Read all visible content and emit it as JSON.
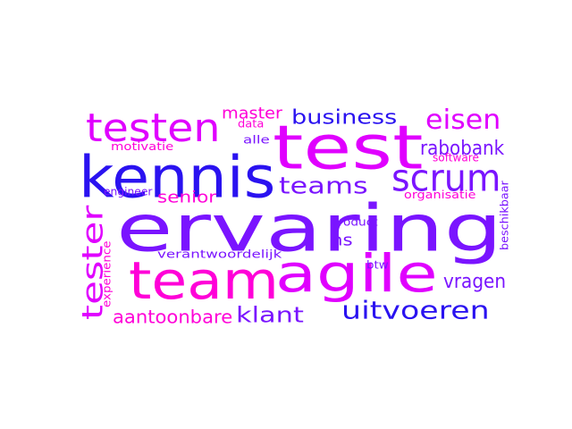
{
  "colors": {
    "blue": "#2a12f0",
    "violet": "#7a14ff",
    "pink": "#ff00d8",
    "magenta": "#e000ff",
    "background": "#ffffff"
  },
  "words": [
    {
      "id": "ervaring",
      "text": "ervaring",
      "color": "violet"
    },
    {
      "id": "test",
      "text": "test",
      "color": "magenta"
    },
    {
      "id": "kennis",
      "text": "kennis",
      "color": "blue"
    },
    {
      "id": "team",
      "text": "team",
      "color": "pink"
    },
    {
      "id": "agile",
      "text": "agile",
      "color": "magenta"
    },
    {
      "id": "testen",
      "text": "testen",
      "color": "magenta"
    },
    {
      "id": "scrum",
      "text": "scrum",
      "color": "violet"
    },
    {
      "id": "tester",
      "text": "tester",
      "color": "magenta"
    },
    {
      "id": "uitvoeren",
      "text": "uitvoeren",
      "color": "blue"
    },
    {
      "id": "teams",
      "text": "teams",
      "color": "violet"
    },
    {
      "id": "eisen",
      "text": "eisen",
      "color": "magenta"
    },
    {
      "id": "business",
      "text": "business",
      "color": "blue"
    },
    {
      "id": "klant",
      "text": "klant",
      "color": "violet"
    },
    {
      "id": "rabobank",
      "text": "rabobank",
      "color": "violet"
    },
    {
      "id": "vragen",
      "text": "vragen",
      "color": "violet"
    },
    {
      "id": "aantoonbare",
      "text": "aantoonbare",
      "color": "pink"
    },
    {
      "id": "master",
      "text": "master",
      "color": "pink"
    },
    {
      "id": "senior",
      "text": "senior",
      "color": "pink"
    },
    {
      "id": "ns",
      "text": "ns",
      "color": "violet"
    },
    {
      "id": "motivatie",
      "text": "motivatie",
      "color": "pink"
    },
    {
      "id": "data",
      "text": "data",
      "color": "pink"
    },
    {
      "id": "alle",
      "text": "alle",
      "color": "violet"
    },
    {
      "id": "software",
      "text": "software",
      "color": "pink"
    },
    {
      "id": "engineer",
      "text": "engineer",
      "color": "violet"
    },
    {
      "id": "organisatie",
      "text": "organisatie",
      "color": "pink"
    },
    {
      "id": "product",
      "text": "product",
      "color": "violet"
    },
    {
      "id": "beschikbaar",
      "text": "beschikbaar",
      "color": "violet"
    },
    {
      "id": "verantwoordelijk",
      "text": "verantwoordelijk",
      "color": "violet"
    },
    {
      "id": "experience",
      "text": "experience",
      "color": "pink"
    },
    {
      "id": "btw",
      "text": "btw",
      "color": "violet"
    }
  ]
}
